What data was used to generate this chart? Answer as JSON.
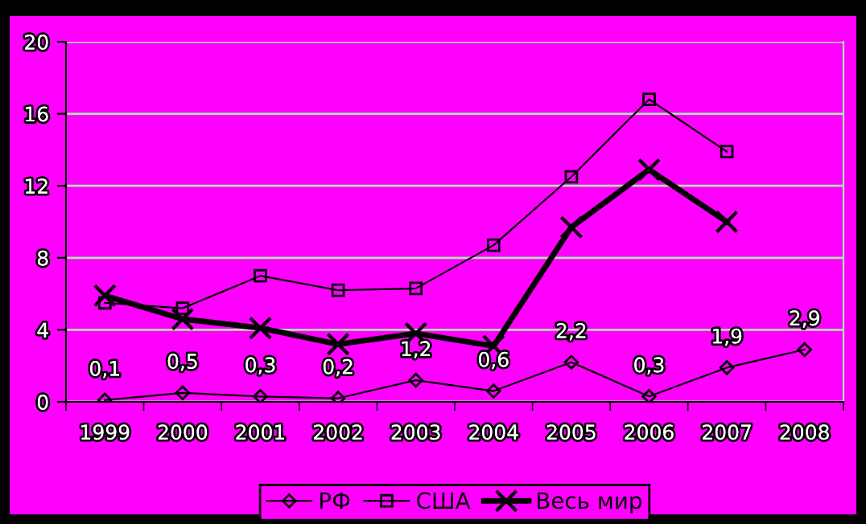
{
  "chart_data": {
    "type": "line",
    "categories": [
      "1999",
      "2000",
      "2001",
      "2002",
      "2003",
      "2004",
      "2005",
      "2006",
      "2007",
      "2008"
    ],
    "series": [
      {
        "name": "РФ",
        "color": "#000000",
        "marker": "diamond",
        "values": [
          0.1,
          0.5,
          0.3,
          0.2,
          1.2,
          0.6,
          2.2,
          0.3,
          1.9,
          2.9
        ],
        "value_labels": [
          "0,1",
          "0,5",
          "0,3",
          "0,2",
          "1,2",
          "0,6",
          "2,2",
          "0,3",
          "1,9",
          "2,9"
        ]
      },
      {
        "name": "США",
        "color": "#000000",
        "marker": "square",
        "values": [
          5.5,
          5.2,
          7.0,
          6.2,
          6.3,
          8.7,
          12.5,
          16.8,
          13.9,
          null
        ]
      },
      {
        "name": "Весь мир",
        "color": "#000000",
        "marker": "cross",
        "values": [
          5.9,
          4.6,
          4.1,
          3.2,
          3.8,
          3.1,
          9.7,
          12.9,
          10.0,
          null
        ]
      }
    ],
    "ylim": [
      0,
      20
    ],
    "yticks": [
      0,
      4,
      8,
      12,
      16,
      20
    ],
    "grid": "y",
    "legend": "bottom"
  }
}
